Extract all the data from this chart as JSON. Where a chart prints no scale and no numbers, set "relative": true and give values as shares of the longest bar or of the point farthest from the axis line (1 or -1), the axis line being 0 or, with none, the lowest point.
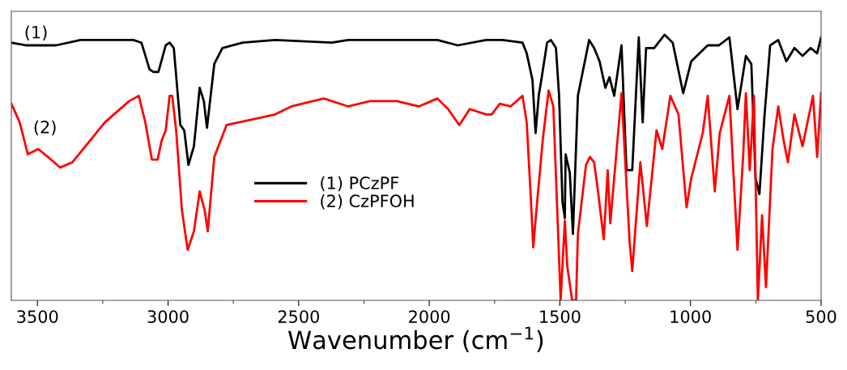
{
  "chart_data": {
    "type": "line",
    "relative": true,
    "xlabel": "Wavenumber (cm$^{−1}$)",
    "xlim": [
      3600,
      500
    ],
    "xticks": [
      3500,
      3000,
      2500,
      2000,
      1500,
      1000,
      500
    ],
    "grid": false,
    "legend": "center",
    "marker": "none",
    "line_style": "solid",
    "annotations": [
      "(1)",
      "(2)"
    ],
    "series": [
      {
        "name": "(1) PCzPF",
        "color": "#000000",
        "x": [
          3600,
          3543,
          3429,
          3335,
          3133,
          3102,
          3071,
          3056,
          3037,
          3009,
          2994,
          2978,
          2953,
          2938,
          2922,
          2901,
          2879,
          2863,
          2851,
          2823,
          2792,
          2714,
          2590,
          2373,
          2310,
          2248,
          2093,
          1969,
          1891,
          1782,
          1720,
          1643,
          1627,
          1605,
          1593,
          1581,
          1571,
          1549,
          1534,
          1515,
          1503,
          1490,
          1481,
          1478,
          1462,
          1450,
          1431,
          1388,
          1369,
          1348,
          1326,
          1310,
          1292,
          1264,
          1245,
          1223,
          1198,
          1183,
          1170,
          1139,
          1099,
          1068,
          1028,
          997,
          934,
          891,
          851,
          820,
          788,
          767,
          751,
          736,
          717,
          695,
          664,
          633,
          602,
          571,
          540,
          515,
          500
        ],
        "values": [
          0.97,
          0.96,
          0.96,
          0.98,
          0.98,
          0.97,
          0.87,
          0.86,
          0.86,
          0.96,
          0.97,
          0.95,
          0.66,
          0.64,
          0.51,
          0.58,
          0.8,
          0.75,
          0.65,
          0.89,
          0.95,
          0.97,
          0.98,
          0.97,
          0.98,
          0.98,
          0.98,
          0.98,
          0.96,
          0.98,
          0.98,
          0.97,
          0.93,
          0.83,
          0.63,
          0.77,
          0.83,
          0.97,
          0.98,
          0.95,
          0.77,
          0.37,
          0.31,
          0.55,
          0.48,
          0.25,
          0.77,
          0.98,
          0.95,
          0.9,
          0.8,
          0.84,
          0.77,
          0.96,
          0.49,
          0.49,
          0.99,
          0.67,
          0.95,
          0.95,
          1.0,
          0.97,
          0.78,
          0.9,
          0.96,
          0.96,
          0.99,
          0.72,
          0.92,
          0.89,
          0.46,
          0.4,
          0.69,
          0.96,
          0.98,
          0.9,
          0.95,
          0.92,
          0.95,
          0.93,
          0.99
        ]
      },
      {
        "name": "(2) CzPFOH",
        "color": "#ff0000",
        "x": [
          3600,
          3568,
          3537,
          3497,
          3460,
          3413,
          3366,
          3242,
          3149,
          3112,
          3087,
          3062,
          3040,
          3025,
          3009,
          2994,
          2984,
          2969,
          2947,
          2925,
          2901,
          2879,
          2860,
          2848,
          2823,
          2776,
          2683,
          2590,
          2528,
          2404,
          2310,
          2227,
          2124,
          2040,
          1969,
          1928,
          1885,
          1845,
          1782,
          1761,
          1730,
          1689,
          1643,
          1627,
          1612,
          1602,
          1587,
          1565,
          1543,
          1525,
          1509,
          1497,
          1481,
          1472,
          1453,
          1438,
          1431,
          1400,
          1385,
          1369,
          1354,
          1332,
          1317,
          1307,
          1264,
          1233,
          1223,
          1192,
          1167,
          1130,
          1108,
          1077,
          1046,
          1015,
          997,
          953,
          934,
          907,
          888,
          851,
          820,
          798,
          788,
          773,
          757,
          742,
          726,
          711,
          686,
          664,
          643,
          627,
          602,
          571,
          531,
          515,
          500
        ],
        "values": [
          0.74,
          0.67,
          0.55,
          0.57,
          0.54,
          0.5,
          0.52,
          0.67,
          0.75,
          0.77,
          0.67,
          0.53,
          0.53,
          0.6,
          0.64,
          0.77,
          0.77,
          0.64,
          0.34,
          0.19,
          0.26,
          0.41,
          0.34,
          0.26,
          0.54,
          0.66,
          0.68,
          0.7,
          0.73,
          0.76,
          0.73,
          0.75,
          0.75,
          0.73,
          0.76,
          0.72,
          0.66,
          0.72,
          0.7,
          0.7,
          0.74,
          0.73,
          0.77,
          0.67,
          0.4,
          0.2,
          0.37,
          0.61,
          0.79,
          0.73,
          0.31,
          0.0,
          0.3,
          0.13,
          0.0,
          0.0,
          0.25,
          0.51,
          0.54,
          0.52,
          0.41,
          0.23,
          0.49,
          0.29,
          0.78,
          0.22,
          0.11,
          0.52,
          0.28,
          0.64,
          0.57,
          0.77,
          0.7,
          0.35,
          0.46,
          0.63,
          0.77,
          0.41,
          0.63,
          0.77,
          0.19,
          0.55,
          0.78,
          0.49,
          0.77,
          0.0,
          0.32,
          0.05,
          0.57,
          0.73,
          0.6,
          0.52,
          0.7,
          0.58,
          0.77,
          0.54,
          0.78
        ]
      }
    ]
  }
}
